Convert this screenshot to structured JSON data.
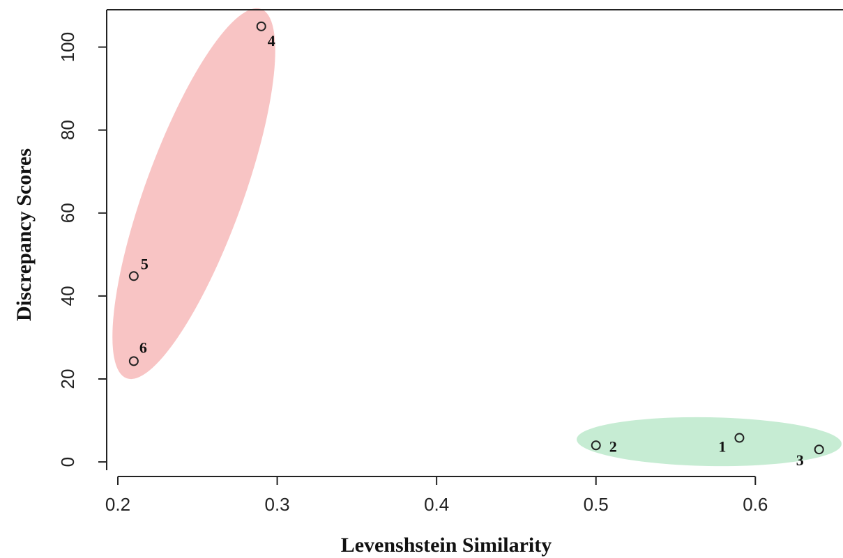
{
  "chart_data": {
    "type": "scatter",
    "xlabel": "Levenshstein Similarity",
    "ylabel": "Discrepancy Scores",
    "xlim": [
      0.193,
      0.655
    ],
    "ylim": [
      -2,
      109
    ],
    "x_ticks": [
      "0.2",
      "0.3",
      "0.4",
      "0.5",
      "0.6"
    ],
    "y_ticks": [
      "0",
      "20",
      "40",
      "60",
      "80",
      "100"
    ],
    "x_tick_values": [
      0.2,
      0.3,
      0.4,
      0.5,
      0.6
    ],
    "y_tick_values": [
      0,
      20,
      40,
      60,
      80,
      100
    ],
    "grid": false,
    "points": [
      {
        "label": "1",
        "x": 0.59,
        "y": 5.8
      },
      {
        "label": "2",
        "x": 0.5,
        "y": 4.0
      },
      {
        "label": "3",
        "x": 0.64,
        "y": 3.0
      },
      {
        "label": "4",
        "x": 0.29,
        "y": 105.0
      },
      {
        "label": "5",
        "x": 0.21,
        "y": 44.8
      },
      {
        "label": "6",
        "x": 0.21,
        "y": 24.3
      }
    ],
    "clusters": [
      {
        "members": [
          "4",
          "5",
          "6"
        ],
        "color": "#f8c4c4"
      },
      {
        "members": [
          "1",
          "2",
          "3"
        ],
        "color": "#c6ecd3"
      }
    ]
  }
}
